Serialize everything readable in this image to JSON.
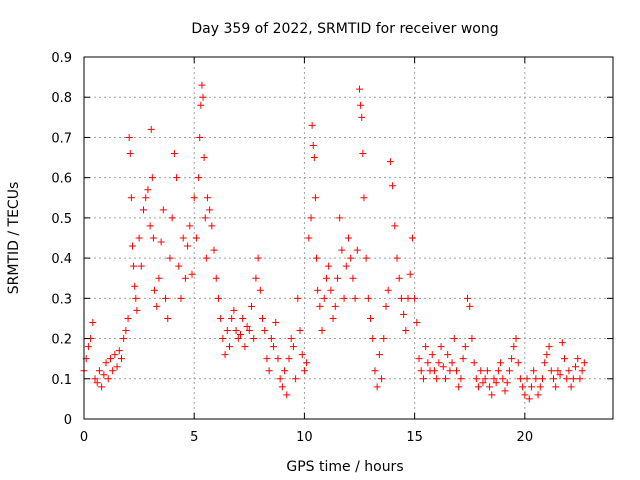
{
  "chart_data": {
    "type": "scatter",
    "title": "Day 359 of 2022, SRMTID for receiver wong",
    "xlabel": "GPS time / hours",
    "ylabel": "SRMTID / TECUs",
    "xlim": [
      0,
      24
    ],
    "ylim": [
      0,
      0.9
    ],
    "xticks": [
      0,
      5,
      10,
      15,
      20
    ],
    "yticks": [
      0,
      0.1,
      0.2,
      0.3,
      0.4,
      0.5,
      0.6,
      0.7,
      0.8,
      0.9
    ],
    "xtick_labels": [
      "0",
      "5",
      "10",
      "15",
      "20"
    ],
    "ytick_labels": [
      "0",
      "0.1",
      "0.2",
      "0.3",
      "0.4",
      "0.5",
      "0.6",
      "0.7",
      "0.8",
      "0.9"
    ],
    "grid": true,
    "marker": "+",
    "color": "#ff0000",
    "series": [
      {
        "name": "SRMTID",
        "x": [
          0.0,
          0.1,
          0.2,
          0.3,
          0.4,
          0.5,
          0.6,
          0.7,
          0.8,
          0.9,
          1.0,
          1.1,
          1.2,
          1.3,
          1.4,
          1.5,
          1.6,
          1.7,
          1.8,
          1.9,
          2.0,
          2.05,
          2.1,
          2.15,
          2.2,
          2.25,
          2.3,
          2.35,
          2.4,
          2.5,
          2.6,
          2.7,
          2.8,
          2.9,
          3.0,
          3.05,
          3.1,
          3.15,
          3.2,
          3.3,
          3.4,
          3.5,
          3.6,
          3.7,
          3.8,
          3.9,
          4.0,
          4.1,
          4.2,
          4.3,
          4.4,
          4.5,
          4.6,
          4.7,
          4.8,
          4.9,
          5.0,
          5.1,
          5.2,
          5.25,
          5.3,
          5.35,
          5.4,
          5.45,
          5.5,
          5.55,
          5.6,
          5.7,
          5.8,
          5.9,
          6.0,
          6.1,
          6.2,
          6.3,
          6.4,
          6.5,
          6.6,
          6.7,
          6.8,
          6.9,
          7.0,
          7.1,
          7.2,
          7.3,
          7.4,
          7.5,
          7.6,
          7.7,
          7.8,
          7.9,
          8.0,
          8.1,
          8.2,
          8.3,
          8.4,
          8.5,
          8.6,
          8.7,
          8.8,
          8.9,
          9.0,
          9.1,
          9.2,
          9.3,
          9.4,
          9.5,
          9.6,
          9.7,
          9.8,
          9.9,
          10.0,
          10.1,
          10.2,
          10.3,
          10.35,
          10.4,
          10.45,
          10.5,
          10.55,
          10.6,
          10.7,
          10.8,
          10.9,
          11.0,
          11.1,
          11.2,
          11.3,
          11.4,
          11.5,
          11.6,
          11.7,
          11.8,
          11.9,
          12.0,
          12.1,
          12.2,
          12.3,
          12.4,
          12.5,
          12.55,
          12.6,
          12.65,
          12.7,
          12.8,
          12.9,
          13.0,
          13.1,
          13.2,
          13.3,
          13.4,
          13.5,
          13.6,
          13.7,
          13.8,
          13.9,
          14.0,
          14.1,
          14.2,
          14.3,
          14.4,
          14.5,
          14.6,
          14.7,
          14.8,
          14.9,
          15.0,
          15.1,
          15.2,
          15.3,
          15.4,
          15.5,
          15.6,
          15.7,
          15.8,
          15.9,
          16.0,
          16.1,
          16.2,
          16.3,
          16.4,
          16.5,
          16.6,
          16.7,
          16.8,
          16.9,
          17.0,
          17.1,
          17.2,
          17.3,
          17.4,
          17.5,
          17.6,
          17.7,
          17.8,
          17.9,
          18.0,
          18.1,
          18.2,
          18.3,
          18.4,
          18.5,
          18.6,
          18.7,
          18.8,
          18.9,
          19.0,
          19.1,
          19.2,
          19.3,
          19.4,
          19.5,
          19.6,
          19.7,
          19.8,
          19.9,
          20.0,
          20.1,
          20.2,
          20.3,
          20.4,
          20.5,
          20.6,
          20.7,
          20.8,
          20.9,
          21.0,
          21.1,
          21.2,
          21.3,
          21.4,
          21.5,
          21.6,
          21.7,
          21.8,
          21.9,
          22.0,
          22.1,
          22.2,
          22.3,
          22.4,
          22.5,
          22.6,
          22.7
        ],
        "y": [
          0.12,
          0.15,
          0.18,
          0.2,
          0.24,
          0.1,
          0.09,
          0.12,
          0.08,
          0.11,
          0.14,
          0.1,
          0.15,
          0.12,
          0.16,
          0.13,
          0.17,
          0.15,
          0.2,
          0.22,
          0.25,
          0.7,
          0.66,
          0.55,
          0.43,
          0.38,
          0.33,
          0.3,
          0.27,
          0.45,
          0.38,
          0.52,
          0.55,
          0.57,
          0.48,
          0.72,
          0.6,
          0.45,
          0.32,
          0.28,
          0.35,
          0.44,
          0.52,
          0.3,
          0.25,
          0.4,
          0.5,
          0.66,
          0.6,
          0.38,
          0.3,
          0.45,
          0.35,
          0.43,
          0.48,
          0.36,
          0.55,
          0.45,
          0.6,
          0.7,
          0.78,
          0.83,
          0.8,
          0.65,
          0.5,
          0.4,
          0.55,
          0.52,
          0.48,
          0.42,
          0.35,
          0.3,
          0.25,
          0.2,
          0.16,
          0.22,
          0.18,
          0.25,
          0.27,
          0.22,
          0.2,
          0.21,
          0.25,
          0.18,
          0.23,
          0.22,
          0.28,
          0.2,
          0.35,
          0.4,
          0.32,
          0.25,
          0.22,
          0.15,
          0.12,
          0.2,
          0.18,
          0.24,
          0.15,
          0.1,
          0.08,
          0.12,
          0.06,
          0.15,
          0.2,
          0.18,
          0.1,
          0.3,
          0.22,
          0.16,
          0.12,
          0.14,
          0.45,
          0.5,
          0.73,
          0.68,
          0.65,
          0.55,
          0.4,
          0.32,
          0.28,
          0.22,
          0.3,
          0.35,
          0.38,
          0.32,
          0.25,
          0.28,
          0.35,
          0.5,
          0.42,
          0.3,
          0.38,
          0.45,
          0.4,
          0.35,
          0.3,
          0.42,
          0.82,
          0.78,
          0.75,
          0.66,
          0.55,
          0.4,
          0.3,
          0.25,
          0.2,
          0.12,
          0.08,
          0.16,
          0.1,
          0.2,
          0.28,
          0.32,
          0.64,
          0.58,
          0.48,
          0.4,
          0.35,
          0.3,
          0.26,
          0.22,
          0.3,
          0.36,
          0.45,
          0.3,
          0.24,
          0.15,
          0.12,
          0.1,
          0.18,
          0.14,
          0.12,
          0.16,
          0.12,
          0.1,
          0.14,
          0.18,
          0.13,
          0.1,
          0.16,
          0.12,
          0.14,
          0.2,
          0.12,
          0.08,
          0.1,
          0.15,
          0.18,
          0.3,
          0.28,
          0.2,
          0.14,
          0.1,
          0.08,
          0.12,
          0.09,
          0.1,
          0.12,
          0.08,
          0.06,
          0.1,
          0.09,
          0.12,
          0.14,
          0.1,
          0.07,
          0.09,
          0.12,
          0.15,
          0.18,
          0.2,
          0.14,
          0.1,
          0.08,
          0.06,
          0.1,
          0.05,
          0.08,
          0.12,
          0.1,
          0.06,
          0.08,
          0.1,
          0.14,
          0.16,
          0.18,
          0.12,
          0.1,
          0.08,
          0.12,
          0.11,
          0.19,
          0.15,
          0.1,
          0.12,
          0.08,
          0.1,
          0.13,
          0.15,
          0.1,
          0.12,
          0.14
        ]
      }
    ]
  }
}
